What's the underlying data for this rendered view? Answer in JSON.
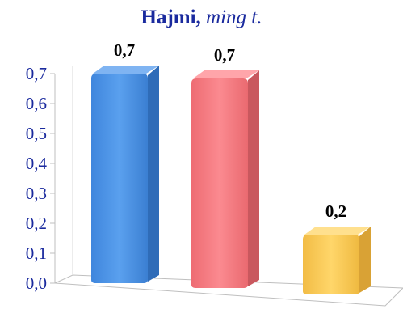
{
  "title": {
    "main": "Hajmi,",
    "unit": "ming t."
  },
  "chart_data": {
    "type": "bar",
    "categories": [
      "",
      "",
      ""
    ],
    "values": [
      0.7,
      0.7,
      0.2
    ],
    "data_labels": [
      "0,7",
      "0,7",
      "0,2"
    ],
    "ylim": [
      0,
      0.7
    ],
    "yticks": [
      0.0,
      0.1,
      0.2,
      0.3,
      0.4,
      0.5,
      0.6,
      0.7
    ],
    "ytick_labels": [
      "0,0",
      "0,1",
      "0,2",
      "0,3",
      "0,4",
      "0,5",
      "0,6",
      "0,7"
    ],
    "xlabel": "",
    "ylabel": "",
    "grid": false,
    "legend": "none",
    "style": "3d-bar",
    "colors": [
      "#4a8fe0",
      "#f2787e",
      "#f6c54f"
    ]
  },
  "colors": {
    "title": "#1a2a9e",
    "axis_text": "#1a2a9e"
  }
}
